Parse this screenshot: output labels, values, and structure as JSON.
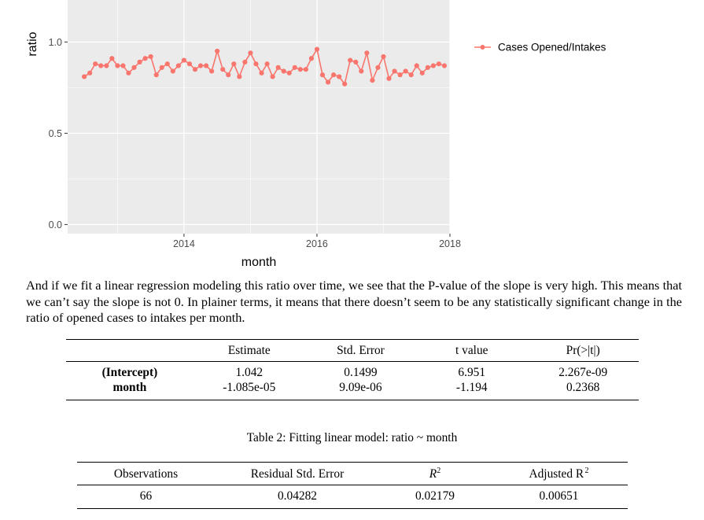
{
  "chart_data": {
    "type": "line",
    "xlabel": "month",
    "ylabel": "ratio",
    "xlim": [
      2012.25,
      2018
    ],
    "ylim": [
      -0.05,
      1.23
    ],
    "x_ticks": [
      2014,
      2016,
      2018
    ],
    "x_tick_labels": [
      "2014",
      "2016",
      "2018"
    ],
    "y_ticks": [
      0.0,
      0.5,
      1.0
    ],
    "y_tick_labels": [
      "0.0",
      "0.5",
      "1.0"
    ],
    "grid": true,
    "legend_position": "right",
    "series": [
      {
        "name": "Cases Opened/Intakes",
        "color": "#F8766D",
        "start": "2012-07",
        "values": [
          0.81,
          0.83,
          0.88,
          0.87,
          0.87,
          0.91,
          0.87,
          0.87,
          0.83,
          0.86,
          0.89,
          0.91,
          0.92,
          0.82,
          0.86,
          0.88,
          0.84,
          0.87,
          0.9,
          0.88,
          0.85,
          0.87,
          0.87,
          0.84,
          0.95,
          0.85,
          0.82,
          0.88,
          0.81,
          0.89,
          0.94,
          0.88,
          0.83,
          0.88,
          0.81,
          0.86,
          0.84,
          0.83,
          0.86,
          0.85,
          0.85,
          0.91,
          0.96,
          0.82,
          0.78,
          0.82,
          0.81,
          0.77,
          0.9,
          0.89,
          0.84,
          0.94,
          0.79,
          0.86,
          0.92,
          0.8,
          0.84,
          0.82,
          0.84,
          0.82,
          0.87,
          0.83,
          0.86,
          0.87,
          0.88,
          0.87
        ]
      }
    ]
  },
  "paragraph": "And if we fit a linear regression modeling this ratio over time, we see that the P-value of the slope is very high. This means that we can’t say the slope is not 0. In plainer terms, it means that there doesn’t seem to be any statistically significant change in the ratio of opened cases to intakes per month.",
  "regression_table": {
    "headers": [
      "",
      "Estimate",
      "Std. Error",
      "t value",
      "Pr(>|t|)"
    ],
    "rows": [
      [
        "(Intercept)",
        "1.042",
        "0.1499",
        "6.951",
        "2.267e-09"
      ],
      [
        "month",
        "-1.085e-05",
        "9.09e-06",
        "-1.194",
        "0.2368"
      ]
    ]
  },
  "caption": "Table 2: Fitting linear model: ratio ~ month",
  "fit_table": {
    "headers": [
      "Observations",
      "Residual Std. Error",
      "R",
      "Adjusted R"
    ],
    "superscript": "2",
    "values": [
      "66",
      "0.04282",
      "0.02179",
      "0.00651"
    ]
  }
}
